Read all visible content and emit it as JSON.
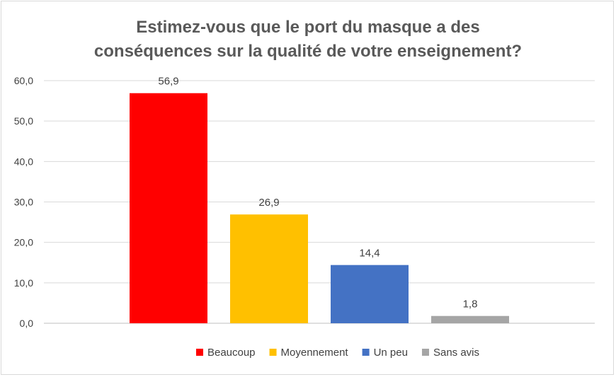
{
  "chart_data": {
    "type": "bar",
    "title_lines": [
      "Estimez-vous que le port du masque a des",
      "conséquences sur la qualité de votre enseignement?"
    ],
    "series": [
      {
        "name": "Beaucoup",
        "value": 56.9,
        "label": "56,9",
        "color": "#ff0000"
      },
      {
        "name": "Moyennement",
        "value": 26.9,
        "label": "26,9",
        "color": "#ffc000"
      },
      {
        "name": "Un peu",
        "value": 14.4,
        "label": "14,4",
        "color": "#4472c4"
      },
      {
        "name": "Sans avis",
        "value": 1.8,
        "label": "1,8",
        "color": "#a5a5a5"
      }
    ],
    "yticks": [
      "0,0",
      "10,0",
      "20,0",
      "30,0",
      "40,0",
      "50,0",
      "60,0"
    ],
    "ylim": [
      0,
      60
    ],
    "grid": true,
    "legend_position": "bottom"
  }
}
